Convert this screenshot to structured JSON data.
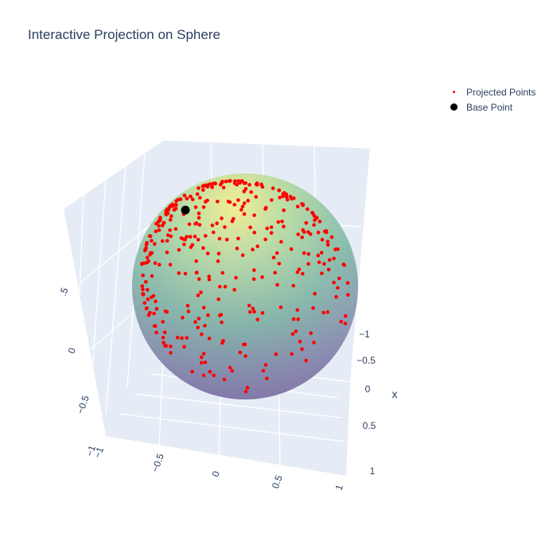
{
  "title": "Interactive Projection on Sphere",
  "legend": {
    "items": [
      {
        "label": "Projected Points",
        "color": "#ff0000"
      },
      {
        "label": "Base Point",
        "color": "#000000"
      }
    ]
  },
  "chart_data": {
    "type": "scatter3d",
    "title": "Interactive Projection on Sphere",
    "surface": "unit sphere, colored with viridis colorscale (partially transparent)",
    "axes": {
      "x": {
        "title": "x",
        "ticks": [
          "−1",
          "−0.5",
          "0",
          "0.5",
          "1"
        ],
        "range": [
          -1,
          1
        ]
      },
      "y": {
        "title": "",
        "ticks": [
          "−1",
          "−0.5",
          "0",
          "0.5",
          "1"
        ],
        "range": [
          -1,
          1
        ]
      },
      "z": {
        "title": "",
        "ticks": [
          "−1",
          "−0.5",
          "0",
          ".5"
        ],
        "range": [
          -1,
          1
        ]
      }
    },
    "series": [
      {
        "name": "Projected Points",
        "color": "#ff0000",
        "marker": "small circle",
        "description": "points projected onto the unit sphere, densest near the upper-left rim"
      },
      {
        "name": "Base Point",
        "color": "#000000",
        "marker": "large circle",
        "values": [
          {
            "x": 0.35,
            "y": -0.55,
            "z": 0.76
          }
        ]
      }
    ]
  }
}
